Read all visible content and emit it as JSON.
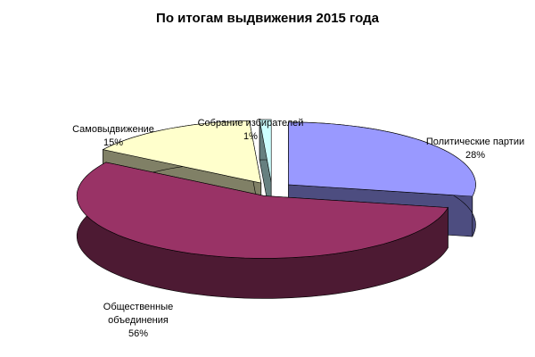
{
  "chart_data": {
    "type": "pie3d",
    "title": "По итогам выдвижения 2015 года",
    "categories": [
      "Политические партии",
      "Общественные объединения",
      "Самовыдвижение",
      "Собрание избирателей"
    ],
    "values": [
      28,
      56,
      15,
      1
    ],
    "value_labels": [
      "28%",
      "56%",
      "15%",
      "1%"
    ],
    "colors": [
      "#9999ff",
      "#993366",
      "#ffffcc",
      "#ccffff"
    ]
  }
}
